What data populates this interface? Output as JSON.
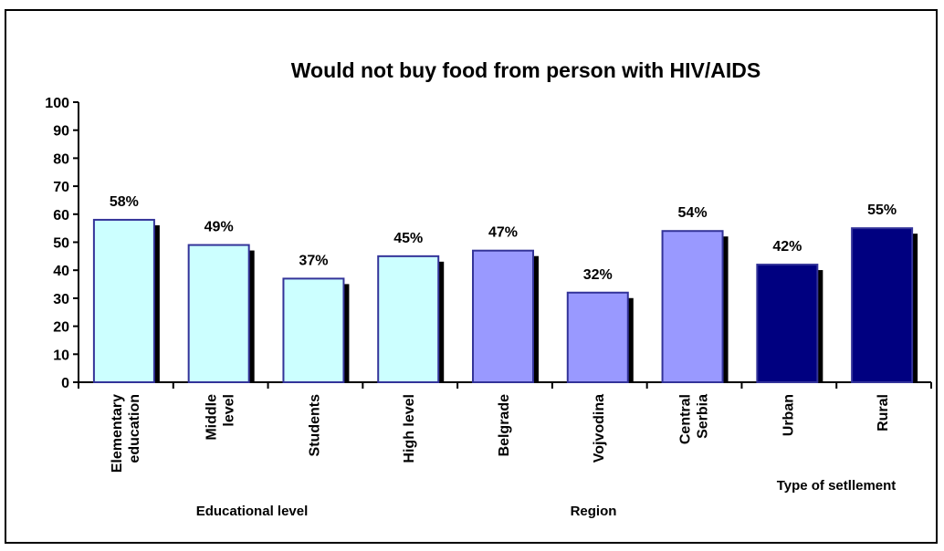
{
  "chart_data": {
    "type": "bar",
    "title": "Would not buy food from person with HIV/AIDS",
    "xlabel": "",
    "ylabel": "",
    "ylim": [
      0,
      100
    ],
    "yticks": [
      0,
      10,
      20,
      30,
      40,
      50,
      60,
      70,
      80,
      90,
      100
    ],
    "grid": false,
    "categories": [
      [
        "Elementary",
        "education"
      ],
      [
        "Middle",
        "level"
      ],
      [
        "Students"
      ],
      [
        "High level"
      ],
      [
        "Belgrade"
      ],
      [
        "Vojvodina"
      ],
      [
        "Central",
        "Serbia"
      ],
      [
        "Urban"
      ],
      [
        "Rural"
      ]
    ],
    "values": [
      58,
      49,
      37,
      45,
      47,
      32,
      54,
      42,
      55
    ],
    "data_labels": [
      "58%",
      "49%",
      "37%",
      "45%",
      "47%",
      "32%",
      "54%",
      "42%",
      "55%"
    ],
    "groups": [
      {
        "label": "Educational level",
        "start": 0,
        "end": 3,
        "color": "#ccffff"
      },
      {
        "label": "Region",
        "start": 4,
        "end": 6,
        "color": "#9999ff"
      },
      {
        "label": "Type of setllement",
        "start": 7,
        "end": 8,
        "color": "#000080"
      }
    ],
    "bar_border_color": "#333399",
    "shadow_color": "#000000"
  }
}
